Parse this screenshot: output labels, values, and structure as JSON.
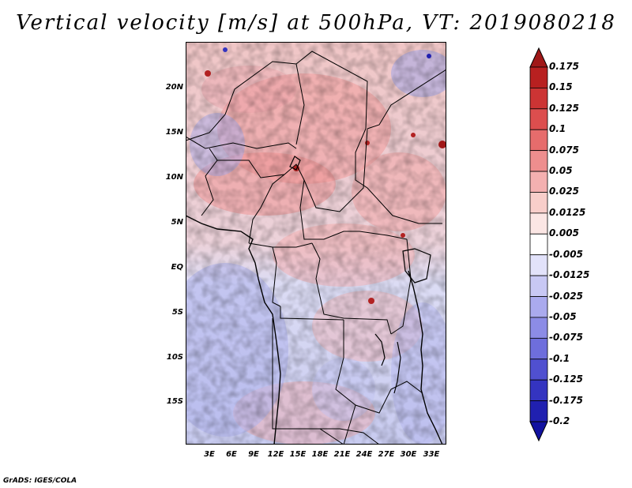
{
  "title": "Vertical velocity [m/s] at 500hPa, VT: 2019080218",
  "credit": "GrADS: IGES/COLA",
  "map": {
    "region": "Central Africa",
    "lat_labels": [
      "20N",
      "15N",
      "10N",
      "5N",
      "EQ",
      "5S",
      "10S",
      "15S"
    ],
    "lon_labels": [
      "3E",
      "6E",
      "9E",
      "12E",
      "15E",
      "18E",
      "21E",
      "24E",
      "27E",
      "30E",
      "33E"
    ]
  },
  "colorbar": {
    "labels": [
      "0.175",
      "0.15",
      "0.125",
      "0.1",
      "0.075",
      "0.05",
      "0.025",
      "0.0125",
      "0.005",
      "-0.005",
      "-0.0125",
      "-0.025",
      "-0.05",
      "-0.075",
      "-0.1",
      "-0.125",
      "-0.175",
      "-0.2"
    ],
    "colors": [
      "#a01818",
      "#b82020",
      "#cc3434",
      "#dc4e4e",
      "#e66c6c",
      "#ee8e8e",
      "#f4b0b0",
      "#f8ceca",
      "#fbe6e4",
      "#ffffff",
      "#e2e2fa",
      "#c8c8f4",
      "#aaaaee",
      "#8c8ce6",
      "#6e6edc",
      "#5050d0",
      "#3434c0",
      "#2020b0",
      "#1212a0"
    ]
  }
}
